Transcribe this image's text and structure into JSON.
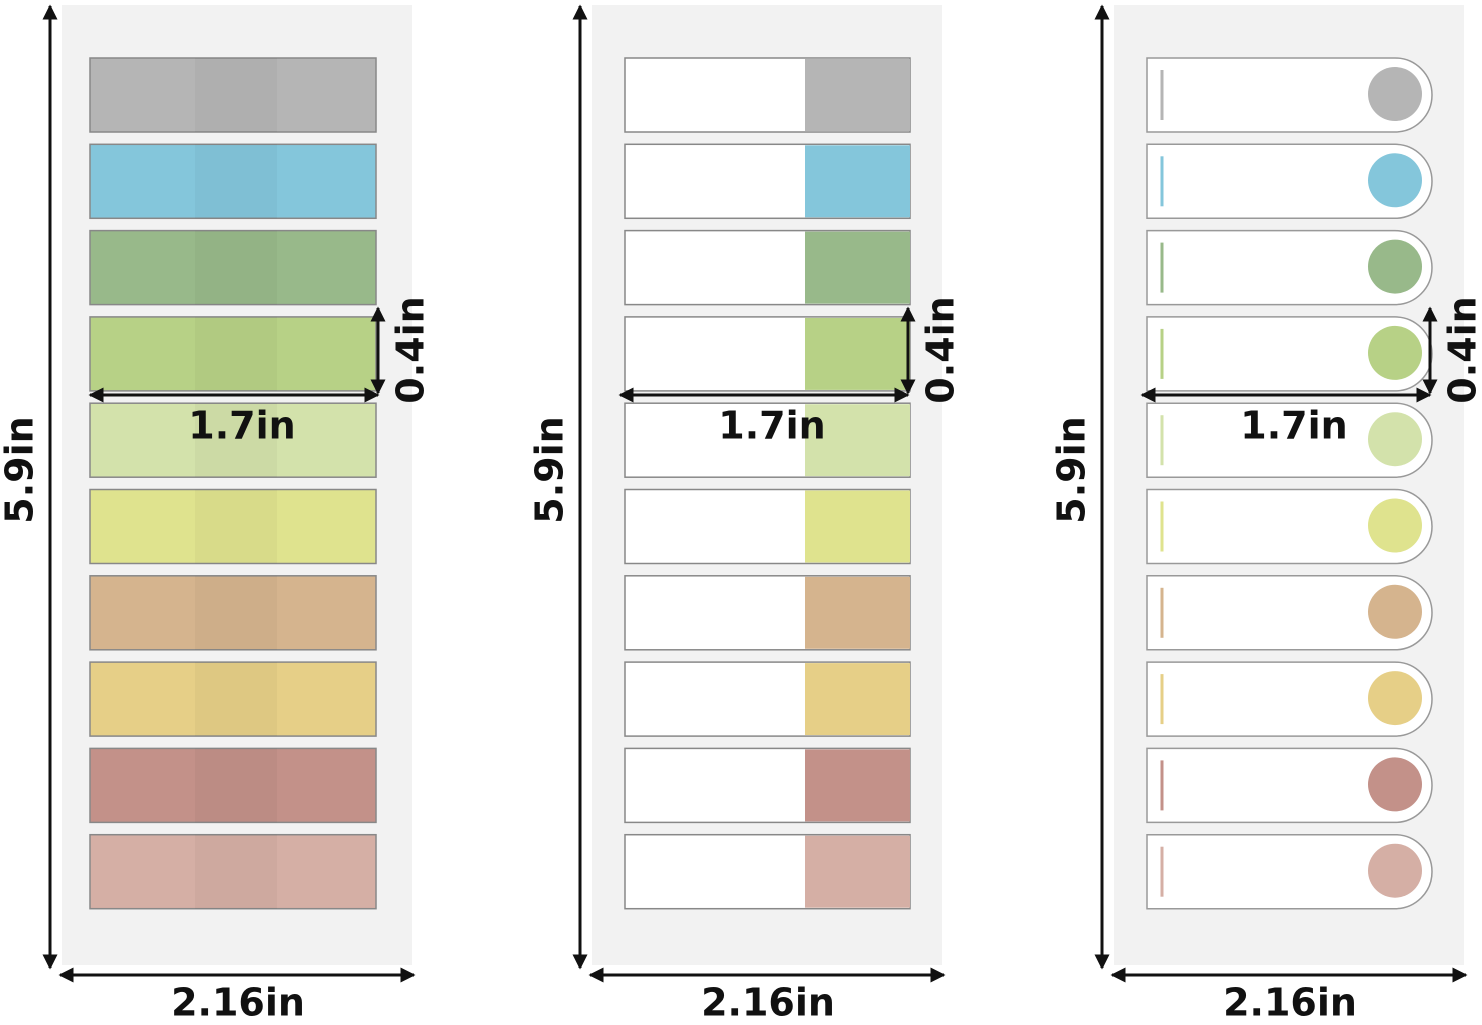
{
  "tab_colors": [
    "#b5b5b5",
    "#84c6db",
    "#98b98a",
    "#b7d186",
    "#d3e2ab",
    "#dfe38e",
    "#d5b48e",
    "#e6cf87",
    "#c39189",
    "#d5afa5"
  ],
  "panels": [
    {
      "height_label": "5.9in",
      "width_label": "2.16in",
      "tab_width_label": "1.7in",
      "tab_height_label": "0.4in"
    },
    {
      "height_label": "5.9in",
      "width_label": "2.16in",
      "tab_width_label": "1.7in",
      "tab_height_label": "0.4in"
    },
    {
      "height_label": "5.9in",
      "width_label": "2.16in",
      "tab_width_label": "1.7in",
      "tab_height_label": "0.4in"
    }
  ]
}
